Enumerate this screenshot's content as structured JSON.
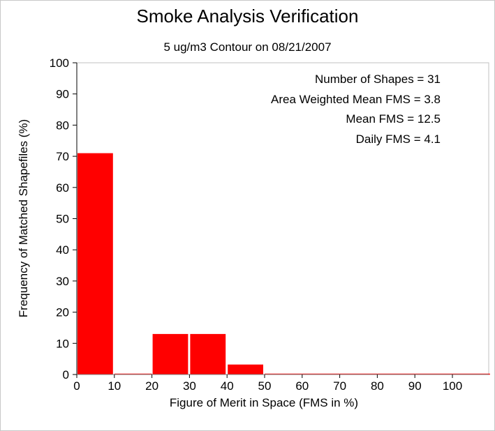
{
  "chart_data": {
    "type": "bar",
    "title": "Smoke Analysis Verification",
    "subtitle": "5 ug/m3 Contour on 08/21/2007",
    "xlabel": "Figure of Merit in Space (FMS in %)",
    "ylabel": "Frequency of Matched Shapefiles (%)",
    "xlim": [
      0,
      110
    ],
    "ylim": [
      0,
      100
    ],
    "xticks": [
      0,
      10,
      20,
      30,
      40,
      50,
      60,
      70,
      80,
      90,
      100
    ],
    "yticks": [
      0,
      10,
      20,
      30,
      40,
      50,
      60,
      70,
      80,
      90,
      100
    ],
    "bin_width": 10,
    "bins": [
      {
        "start": 0,
        "end": 10,
        "value": 71
      },
      {
        "start": 10,
        "end": 20,
        "value": 0
      },
      {
        "start": 20,
        "end": 30,
        "value": 13
      },
      {
        "start": 30,
        "end": 40,
        "value": 13
      },
      {
        "start": 40,
        "end": 50,
        "value": 3.2
      },
      {
        "start": 50,
        "end": 60,
        "value": 0
      },
      {
        "start": 60,
        "end": 70,
        "value": 0
      },
      {
        "start": 70,
        "end": 80,
        "value": 0
      },
      {
        "start": 80,
        "end": 90,
        "value": 0
      },
      {
        "start": 90,
        "end": 100,
        "value": 0
      },
      {
        "start": 100,
        "end": 110,
        "value": 0
      }
    ],
    "bar_color": "#ff0000",
    "grid": false,
    "annotations": [
      "Number of Shapes = 31",
      "Area Weighted Mean FMS = 3.8",
      "Mean FMS = 12.5",
      "Daily FMS = 4.1"
    ]
  }
}
